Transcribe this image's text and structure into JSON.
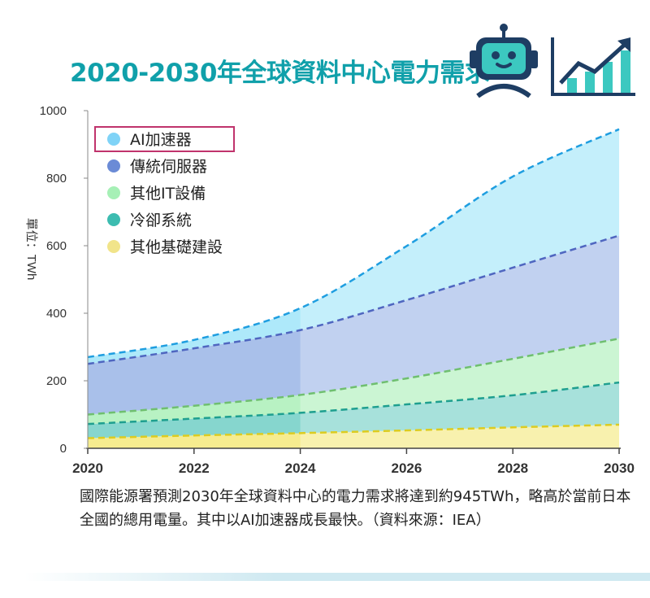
{
  "header": {
    "title": "2020-2030年全球資料中心電力需求"
  },
  "icons": {
    "robot": "robot-icon",
    "growth": "growth-chart-icon"
  },
  "colors": {
    "title": "#10a0aa",
    "highlight_box": "#c0336c",
    "axis": "#444444"
  },
  "chart_data": {
    "type": "area",
    "stacked": true,
    "title": "2020-2030年全球資料中心電力需求",
    "ylabel": "單位：TWh",
    "xlabel": "",
    "x": [
      2020,
      2022,
      2024,
      2026,
      2028,
      2030
    ],
    "x_ticks": [
      "2020",
      "2022",
      "2024",
      "2026",
      "2028",
      "2030"
    ],
    "y_ticks": [
      "0",
      "200",
      "400",
      "600",
      "800",
      "1000"
    ],
    "xlim": [
      2020,
      2030
    ],
    "ylim": [
      0,
      1000
    ],
    "highlighted_legend": "AI加速器",
    "series": [
      {
        "name": "其他基礎建設",
        "values": [
          30,
          38,
          45,
          53,
          62,
          70
        ],
        "color": "#f6ec8f",
        "line": "#dccc20"
      },
      {
        "name": "冷卻系統",
        "values": [
          42,
          50,
          60,
          77,
          95,
          125
        ],
        "color": "#86d6ce",
        "line": "#1e9f8f"
      },
      {
        "name": "其他IT設備",
        "values": [
          28,
          38,
          53,
          77,
          108,
          130
        ],
        "color": "#b8f2c3",
        "line": "#6fbf6f"
      },
      {
        "name": "傳統伺服器",
        "values": [
          150,
          170,
          192,
          232,
          270,
          305
        ],
        "color": "#a9c0ea",
        "line": "#4f66c0"
      },
      {
        "name": "AI加速器",
        "values": [
          20,
          25,
          65,
          160,
          270,
          315
        ],
        "color": "#aee9fa",
        "line": "#1f9ee0"
      }
    ],
    "legend": [
      {
        "label": "AI加速器",
        "color": "#7fd3f7"
      },
      {
        "label": "傳統伺服器",
        "color": "#6b8bd6"
      },
      {
        "label": "其他IT設備",
        "color": "#a6f0b6"
      },
      {
        "label": "冷卻系統",
        "color": "#3cbcb0"
      },
      {
        "label": "其他基礎建設",
        "color": "#f1e48a"
      }
    ]
  },
  "caption": "國際能源署預測2030年全球資料中心的電力需求將達到約945TWh，略高於當前日本全國的總用電量。其中以AI加速器成長最快。（資料來源：IEA）"
}
